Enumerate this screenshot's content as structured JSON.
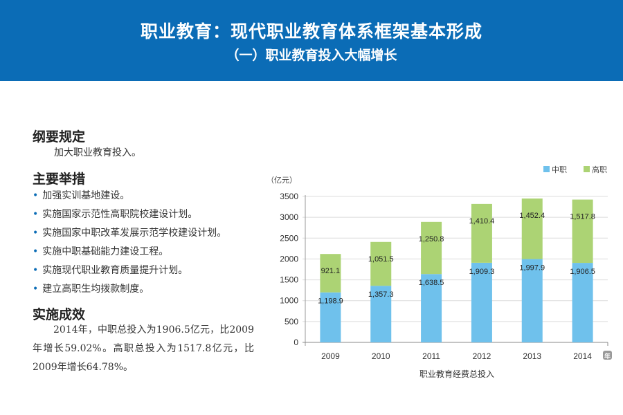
{
  "header": {
    "title": "职业教育：现代职业教育体系框架基本形成",
    "subtitle": "（一）职业教育投入大幅增长"
  },
  "left": {
    "section1_title": "纲要规定",
    "section1_text": "加大职业教育投入。",
    "section2_title": "主要举措",
    "measures": [
      "加强实训基地建设。",
      "实施国家示范性高职院校建设计划。",
      "实施国家中职改革发展示范学校建设计划。",
      "实施中职基础能力建设工程。",
      "实施现代职业教育质量提升计划。",
      "建立高职生均拨款制度。"
    ],
    "section3_title": "实施成效",
    "section3_text": "2014年，中职总投入为1906.5亿元，比2009年增长59.02%。高职总投入为1517.8亿元，比2009年增长64.78%。"
  },
  "chart_data": {
    "type": "bar",
    "stacked": true,
    "categories": [
      "2009",
      "2010",
      "2011",
      "2012",
      "2013",
      "2014"
    ],
    "series": [
      {
        "name": "中职",
        "color": "#6fc1ec",
        "values": [
          1198.9,
          1357.3,
          1638.5,
          1909.3,
          1997.9,
          1906.5
        ],
        "labels": [
          "1,198.9",
          "1,357.3",
          "1,638.5",
          "1,909.3",
          "1,997.9",
          "1,906.5"
        ]
      },
      {
        "name": "高职",
        "color": "#acd374",
        "values": [
          921.1,
          1051.5,
          1250.8,
          1410.4,
          1452.4,
          1517.8
        ],
        "labels": [
          "921.1",
          "1,051.5",
          "1,250.8",
          "1,410.4",
          "1,452.4",
          "1,517.8"
        ]
      }
    ],
    "ylabel": "（亿元）",
    "xunit": "年",
    "xlabel": "职业教育经费总投入",
    "ylim": [
      0,
      3500
    ],
    "yticks": [
      0,
      500,
      1000,
      1500,
      2000,
      2500,
      3000,
      3500
    ],
    "grid": true,
    "legend": "top-right"
  }
}
